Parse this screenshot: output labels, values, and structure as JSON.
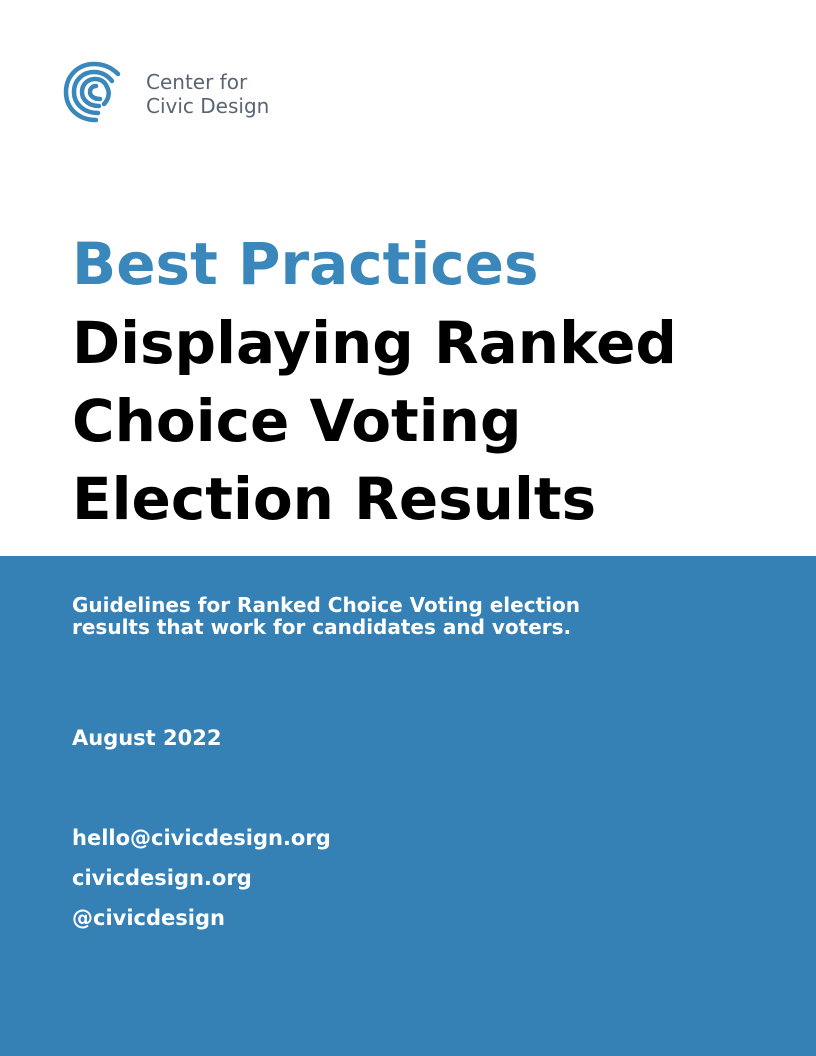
{
  "logo": {
    "line1": "Center for",
    "line2": "Civic Design",
    "icon": "swirl-logo-icon",
    "color": "#3a87bb"
  },
  "title": {
    "accent": "Best Practices",
    "lines": [
      "Displaying Ranked",
      "Choice Voting",
      "Election Results"
    ],
    "accent_color": "#3a87bb"
  },
  "band": {
    "color": "#3581b5",
    "subtitle_lines": [
      "Guidelines for Ranked Choice Voting election",
      "results that work for candidates and voters."
    ],
    "date": "August 2022",
    "contacts": [
      "hello@civicdesign.org",
      "civicdesign.org",
      "@civicdesign"
    ]
  }
}
